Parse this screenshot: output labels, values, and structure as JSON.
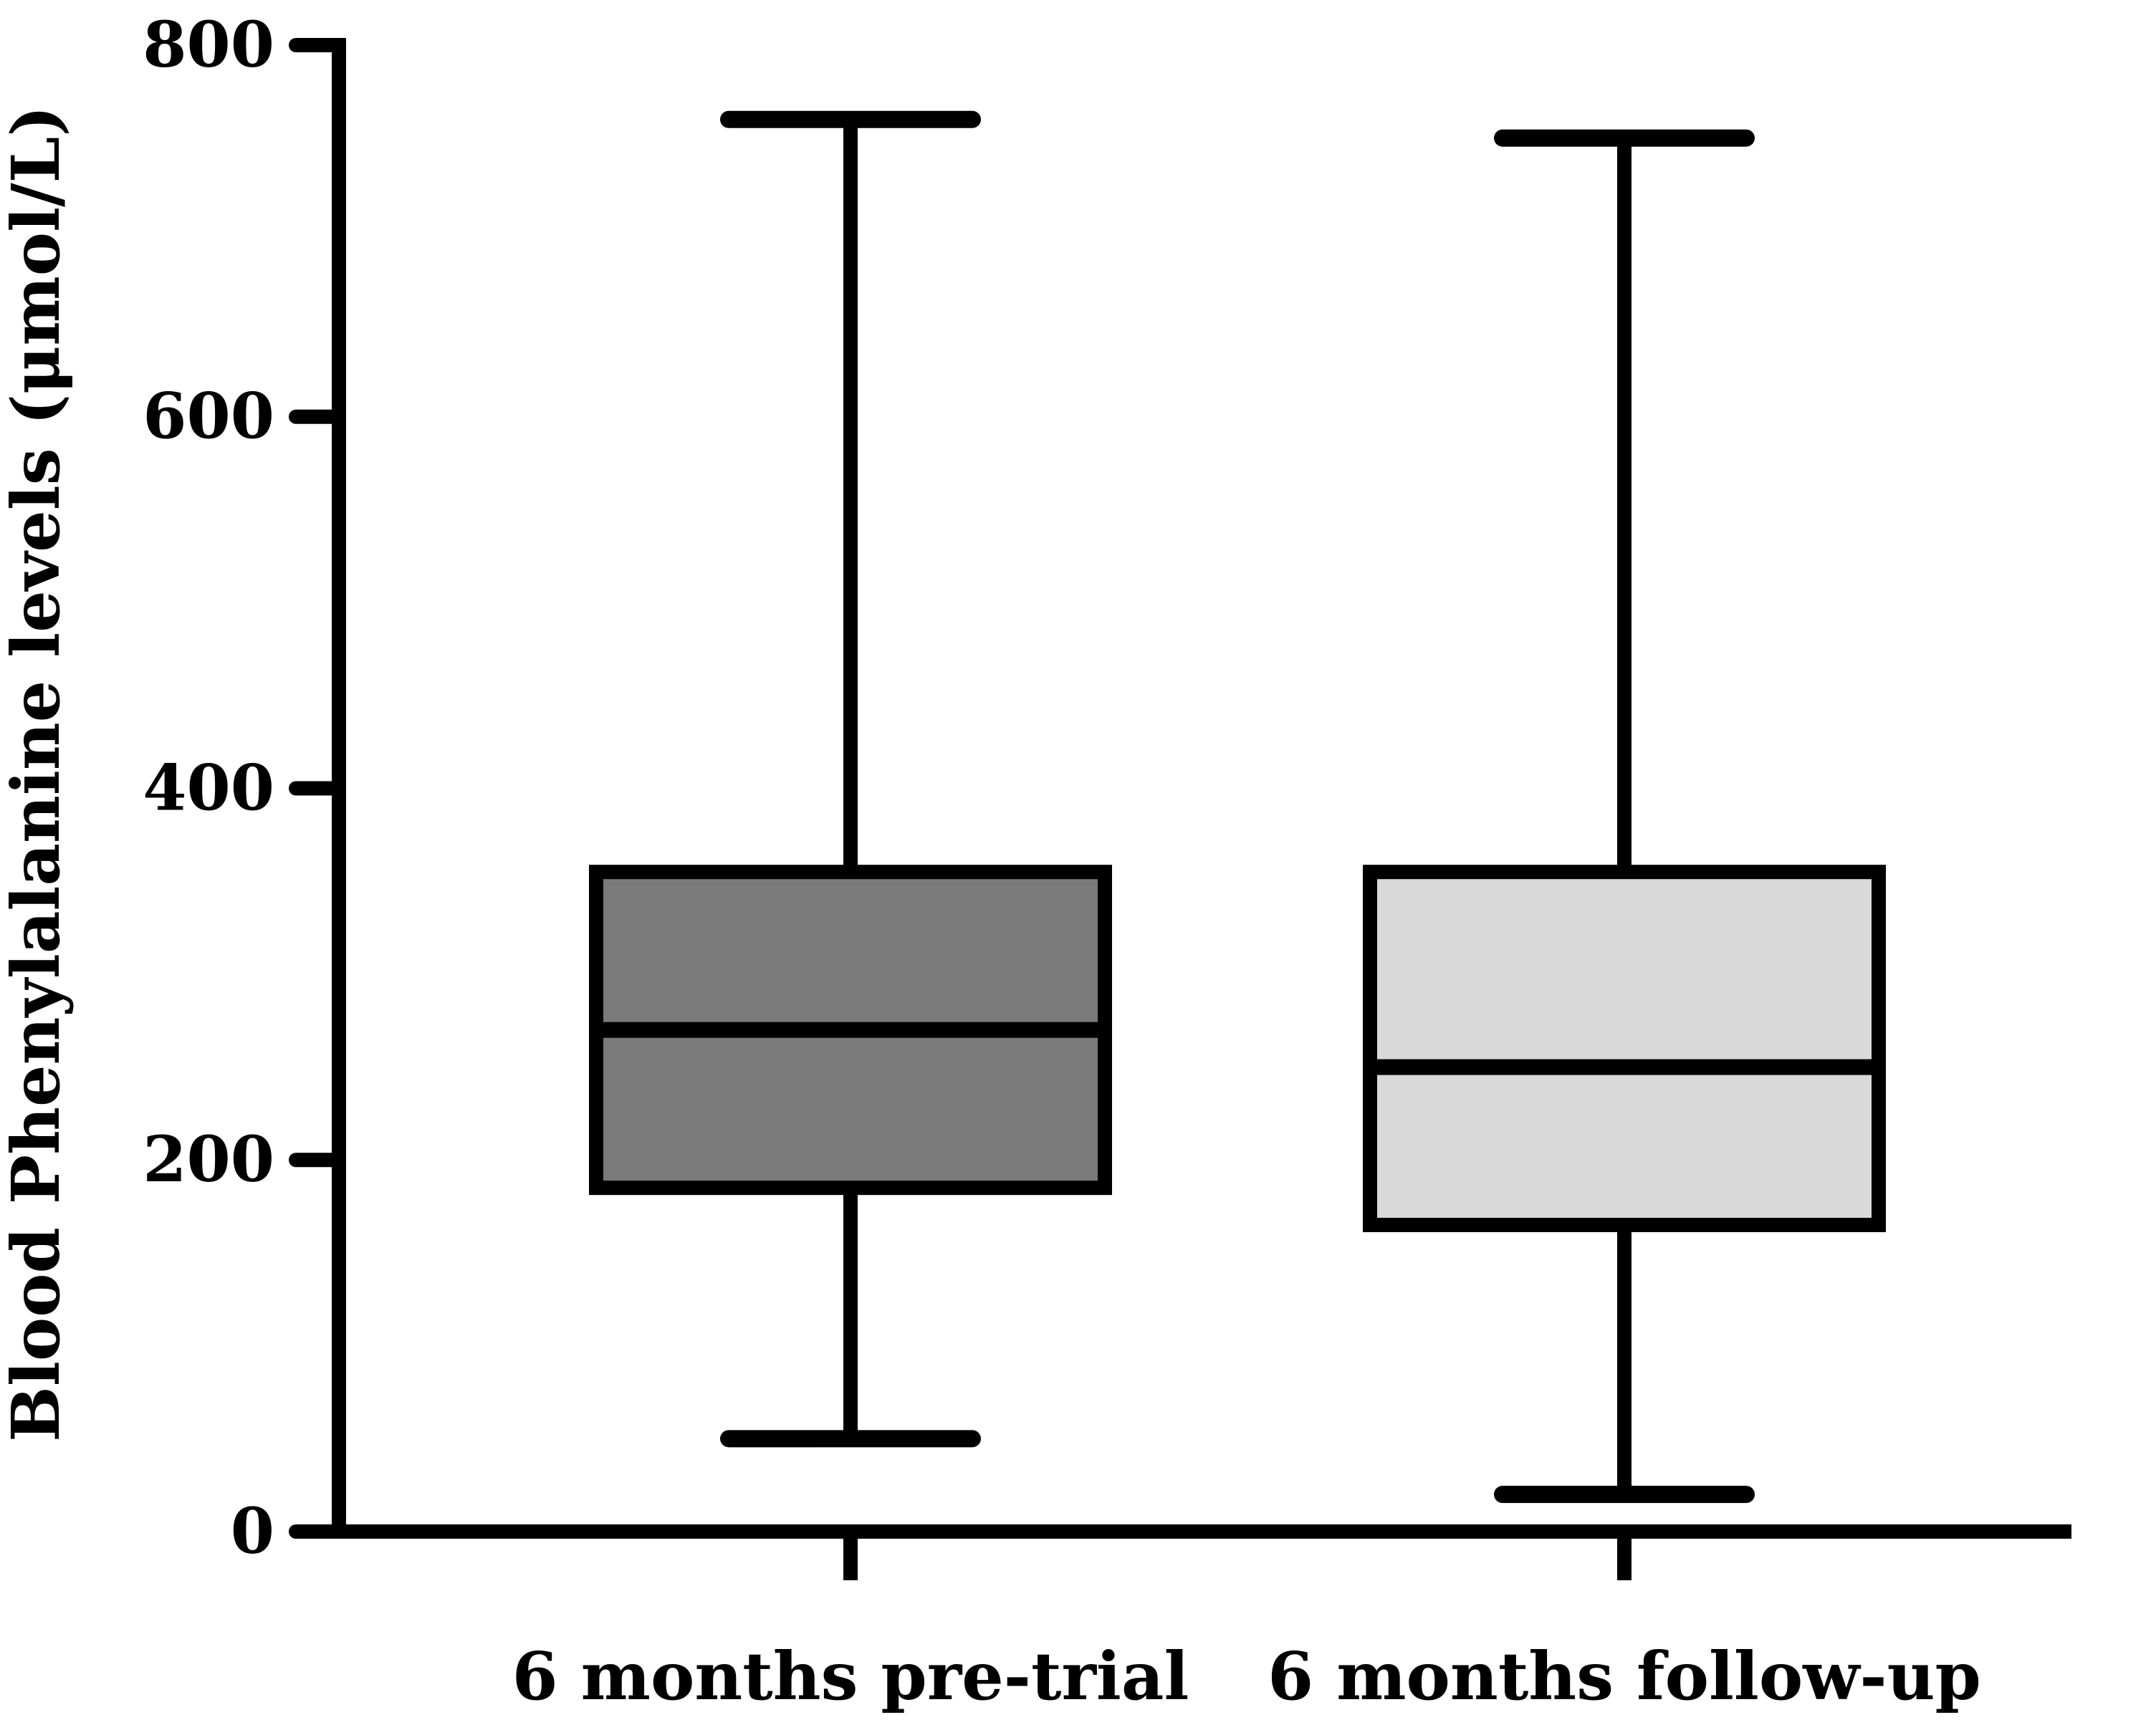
{
  "figure": {
    "background": "#ffffff",
    "line_color": "#000000"
  },
  "chart_data": {
    "type": "box",
    "title": "",
    "xlabel": "",
    "ylabel": "Blood Phenylalanine levels (μmol/L)",
    "ylim": [
      0,
      800
    ],
    "yticks": [
      0,
      200,
      400,
      600,
      800
    ],
    "ytick_labels": [
      "0",
      "200",
      "400",
      "600",
      "800"
    ],
    "grid": false,
    "legend": "none",
    "categories": [
      "6 months pre-trial",
      "6 months follow-up"
    ],
    "series": [
      {
        "name": "6 months pre-trial",
        "min": 50,
        "q1": 185,
        "median": 270,
        "q3": 355,
        "max": 760,
        "fill": "#7a7a7a",
        "stroke": "#000000"
      },
      {
        "name": "6 months follow-up",
        "min": 20,
        "q1": 165,
        "median": 250,
        "q3": 355,
        "max": 750,
        "fill": "#d9d9d9",
        "stroke": "#000000"
      }
    ]
  }
}
